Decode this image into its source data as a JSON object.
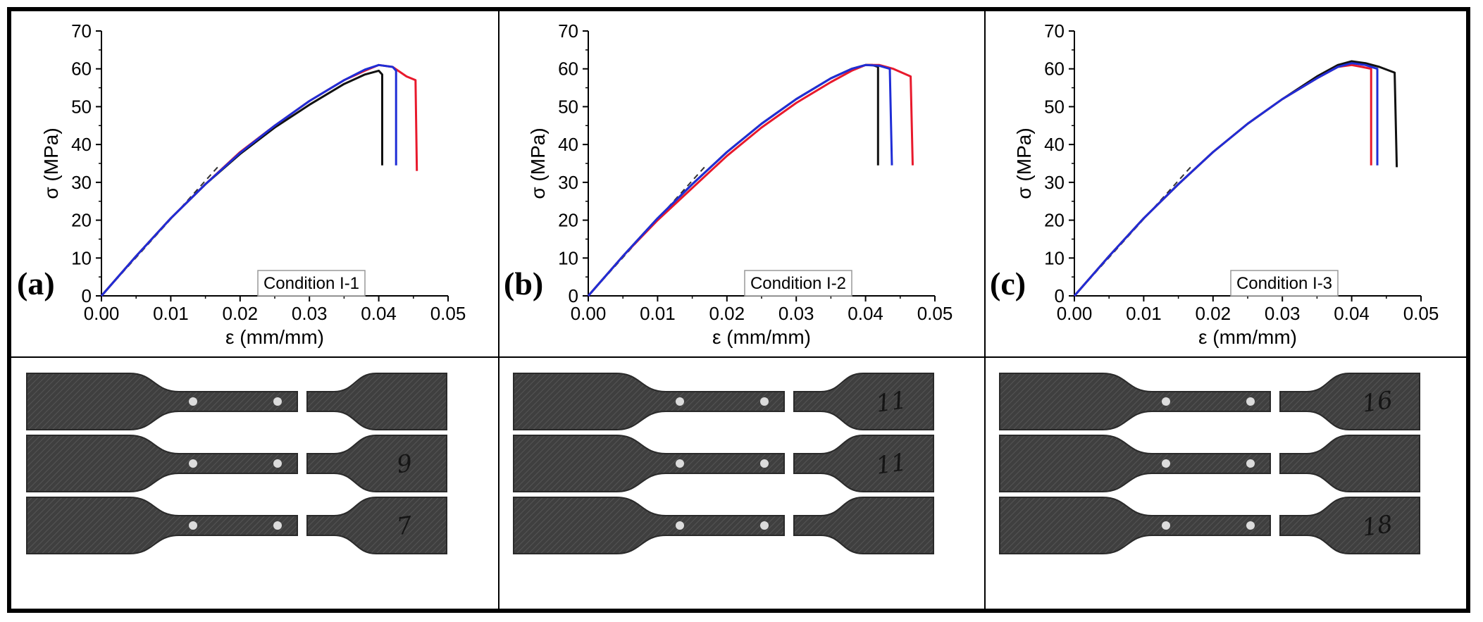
{
  "colors": {
    "black_series": "#111111",
    "red_series": "#e8192c",
    "blue_series": "#1f2dd6",
    "fit_line": "#333333"
  },
  "chart_data": [
    {
      "type": "line",
      "panel_label": "(a)",
      "legend": "Condition I-1",
      "xlabel": "ε (mm/mm)",
      "ylabel": "σ (MPa)",
      "xlim": [
        0,
        0.05
      ],
      "ylim": [
        0,
        70
      ],
      "xticks": [
        "0.00",
        "0.01",
        "0.02",
        "0.03",
        "0.04",
        "0.05"
      ],
      "yticks": [
        "0",
        "10",
        "20",
        "30",
        "40",
        "50",
        "60",
        "70"
      ],
      "grid": false,
      "fit_line": {
        "x": [
          0,
          0.017
        ],
        "y": [
          0,
          34.5
        ]
      },
      "series": [
        {
          "color": "black",
          "x": [
            0,
            0.005,
            0.01,
            0.015,
            0.02,
            0.025,
            0.03,
            0.035,
            0.038,
            0.04,
            0.0405,
            0.0405
          ],
          "y": [
            0,
            10.5,
            20.5,
            29.5,
            37.5,
            44.5,
            50.5,
            56,
            58.5,
            59.5,
            58.5,
            34.5
          ]
        },
        {
          "color": "red",
          "x": [
            0,
            0.005,
            0.01,
            0.015,
            0.02,
            0.025,
            0.03,
            0.035,
            0.038,
            0.04,
            0.042,
            0.044,
            0.0453,
            0.0455
          ],
          "y": [
            0,
            10.5,
            20.5,
            29.5,
            38,
            45,
            51.5,
            57,
            59.5,
            61,
            60.5,
            58,
            57,
            33
          ]
        },
        {
          "color": "blue",
          "x": [
            0,
            0.005,
            0.01,
            0.015,
            0.02,
            0.025,
            0.03,
            0.035,
            0.038,
            0.04,
            0.042,
            0.0425,
            0.0425
          ],
          "y": [
            0,
            10.5,
            20.5,
            29.5,
            37.8,
            45,
            51.5,
            57,
            59.8,
            61,
            60.5,
            59.5,
            34.5
          ]
        }
      ]
    },
    {
      "type": "line",
      "panel_label": "(b)",
      "legend": "Condition I-2",
      "xlabel": "ε (mm/mm)",
      "ylabel": "σ (MPa)",
      "xlim": [
        0,
        0.05
      ],
      "ylim": [
        0,
        70
      ],
      "xticks": [
        "0.00",
        "0.01",
        "0.02",
        "0.03",
        "0.04",
        "0.05"
      ],
      "yticks": [
        "0",
        "10",
        "20",
        "30",
        "40",
        "50",
        "60",
        "70"
      ],
      "grid": false,
      "fit_line": {
        "x": [
          0,
          0.017
        ],
        "y": [
          0,
          34.5
        ]
      },
      "series": [
        {
          "color": "black",
          "x": [
            0,
            0.005,
            0.01,
            0.015,
            0.02,
            0.025,
            0.03,
            0.035,
            0.038,
            0.04,
            0.041,
            0.0418,
            0.0418
          ],
          "y": [
            0,
            10.5,
            20.5,
            29.5,
            38,
            45.5,
            52,
            57.5,
            60,
            61,
            61,
            60.5,
            34.5
          ]
        },
        {
          "color": "red",
          "x": [
            0,
            0.005,
            0.01,
            0.015,
            0.02,
            0.025,
            0.03,
            0.035,
            0.038,
            0.04,
            0.042,
            0.044,
            0.0465,
            0.0468
          ],
          "y": [
            0,
            10.5,
            20,
            28.5,
            37,
            44.5,
            51,
            56.5,
            59.5,
            61,
            61,
            60,
            58,
            34.5
          ]
        },
        {
          "color": "blue",
          "x": [
            0,
            0.005,
            0.01,
            0.015,
            0.02,
            0.025,
            0.03,
            0.035,
            0.038,
            0.04,
            0.042,
            0.0435,
            0.0438
          ],
          "y": [
            0,
            10.5,
            20.5,
            29.5,
            38,
            45.5,
            52,
            57.5,
            60,
            61,
            60.8,
            60,
            34.5
          ]
        }
      ]
    },
    {
      "type": "line",
      "panel_label": "(c)",
      "legend": "Condition I-3",
      "xlabel": "ε (mm/mm)",
      "ylabel": "σ (MPa)",
      "xlim": [
        0,
        0.05
      ],
      "ylim": [
        0,
        70
      ],
      "xticks": [
        "0.00",
        "0.01",
        "0.02",
        "0.03",
        "0.04",
        "0.05"
      ],
      "yticks": [
        "0",
        "10",
        "20",
        "30",
        "40",
        "50",
        "60",
        "70"
      ],
      "grid": false,
      "fit_line": {
        "x": [
          0,
          0.017
        ],
        "y": [
          0,
          34.5
        ]
      },
      "series": [
        {
          "color": "black",
          "x": [
            0,
            0.005,
            0.01,
            0.015,
            0.02,
            0.025,
            0.03,
            0.035,
            0.038,
            0.04,
            0.042,
            0.044,
            0.0462,
            0.0465
          ],
          "y": [
            0,
            10.5,
            20.5,
            29.5,
            38,
            45.5,
            52,
            58,
            61,
            62,
            61.5,
            60.5,
            59,
            34
          ]
        },
        {
          "color": "red",
          "x": [
            0,
            0.005,
            0.01,
            0.015,
            0.02,
            0.025,
            0.03,
            0.035,
            0.038,
            0.04,
            0.0415,
            0.0428,
            0.0428
          ],
          "y": [
            0,
            10.5,
            20.5,
            29.5,
            38,
            45.5,
            52,
            57.5,
            60.5,
            61,
            60.5,
            60,
            34.5
          ]
        },
        {
          "color": "blue",
          "x": [
            0,
            0.005,
            0.01,
            0.015,
            0.02,
            0.025,
            0.03,
            0.035,
            0.038,
            0.04,
            0.042,
            0.0437,
            0.0437
          ],
          "y": [
            0,
            10.5,
            20.5,
            29.5,
            38,
            45.5,
            52,
            57.5,
            60.5,
            61.5,
            61,
            60,
            34.5
          ]
        }
      ]
    }
  ],
  "specimens": [
    {
      "marks": [
        "",
        "9",
        "7"
      ]
    },
    {
      "marks": [
        "11",
        "11",
        ""
      ]
    },
    {
      "marks": [
        "16",
        "",
        "18"
      ]
    }
  ]
}
